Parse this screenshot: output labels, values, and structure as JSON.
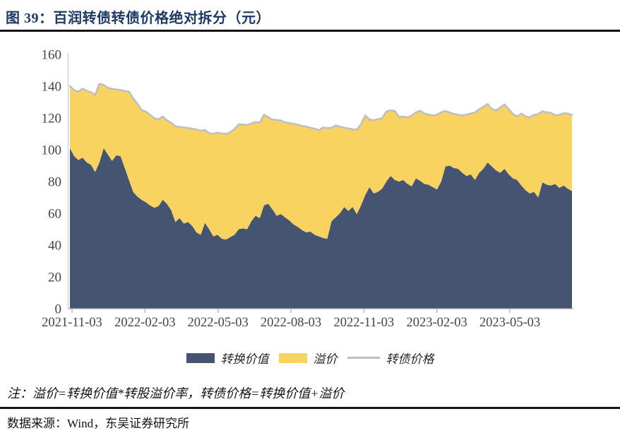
{
  "figure": {
    "label": "图 39：",
    "title": "百润转债转债价格绝对拆分（元）"
  },
  "note": "注：溢价=转换价值*转股溢价率，转债价格=转换价值+溢价",
  "source": "数据来源：Wind，东吴证券研究所",
  "legend": [
    {
      "label": "转换价值",
      "type": "fill",
      "color": "#455571"
    },
    {
      "label": "溢价",
      "type": "fill",
      "color": "#F9D35F"
    },
    {
      "label": "转债价格",
      "type": "line",
      "color": "#BFBFBF"
    }
  ],
  "colors": {
    "conversion_value_fill": "#455571",
    "premium_fill": "#F9D35F",
    "bond_price_line": "#BFBFBF",
    "title_text": "#1d3a66",
    "axis_text": "#454545",
    "axis_line": "#ABABAB",
    "y_axis_line": "#C9CBD3",
    "rule": "#141414"
  },
  "chart_data": {
    "type": "area",
    "stacked": true,
    "title": "百润转债转债价格绝对拆分（元）",
    "ylabel": "",
    "xlabel": "",
    "ylim": [
      0,
      160
    ],
    "yticks": [
      0,
      20,
      40,
      60,
      80,
      100,
      120,
      140,
      160
    ],
    "xticks": [
      "2021-11-03",
      "2022-02-03",
      "2022-05-03",
      "2022-08-03",
      "2022-11-03",
      "2023-02-03",
      "2023-05-03"
    ],
    "x_start": "2021-11-03",
    "x_end_approx": "2023-07",
    "grid": false,
    "legend_position": "bottom",
    "premium_definition": "溢价 = 转债价格 - 转换价值（图中黄色带厚度）",
    "series": [
      {
        "name": "转换价值",
        "role": "stacked-area-bottom",
        "color": "#455571",
        "values": [
          101,
          96,
          93.5,
          95,
          92,
          90.5,
          86,
          92,
          101,
          97,
          93,
          96.5,
          96,
          88.5,
          81,
          73.5,
          70.5,
          68.5,
          67,
          65,
          63.5,
          64.5,
          68.5,
          66,
          62,
          54.5,
          57,
          53.5,
          54.5,
          52,
          48,
          46.5,
          54,
          50,
          45.5,
          46.5,
          44,
          43.5,
          45,
          46.5,
          50,
          50.5,
          50,
          55,
          58.5,
          57,
          65,
          66,
          62.5,
          58.5,
          59.5,
          57.5,
          55.5,
          53,
          51.5,
          49.5,
          48,
          48.5,
          46.5,
          45.5,
          44.5,
          44,
          55,
          57.5,
          60,
          64,
          61.5,
          64,
          59.5,
          65,
          71.5,
          76.5,
          72.5,
          73.5,
          75.5,
          80,
          83.5,
          81,
          80,
          81,
          78.5,
          77,
          82,
          80.5,
          78.5,
          78,
          76.5,
          75,
          80,
          89.5,
          90,
          88.5,
          88,
          85.5,
          83.5,
          84.5,
          81,
          85.5,
          88,
          92,
          89.5,
          87,
          85.5,
          88,
          84.5,
          82,
          81,
          77.5,
          74.5,
          72.5,
          73.5,
          70,
          79.5,
          78,
          77.5,
          78.5,
          76,
          77.5,
          75.5,
          74
        ]
      },
      {
        "name": "溢价",
        "role": "stacked-area-top",
        "color": "#F9D35F",
        "derived": "转债价格 - 转换价值"
      },
      {
        "name": "转债价格",
        "role": "line",
        "color": "#BFBFBF",
        "values": [
          140,
          137.5,
          136.5,
          138.5,
          137,
          136.2,
          134.5,
          141.5,
          140.8,
          139,
          138.3,
          138,
          137.6,
          137,
          136.6,
          132.4,
          129,
          125,
          124,
          122,
          119.8,
          119.1,
          121,
          118.5,
          117,
          114.7,
          114.3,
          114,
          113.7,
          113.3,
          112.8,
          112,
          112.4,
          110.5,
          110,
          110.8,
          110.2,
          110,
          111,
          113,
          116,
          115.8,
          115.6,
          116.5,
          117.5,
          117,
          122,
          120.5,
          119,
          118.7,
          118.4,
          117.2,
          116.8,
          116.3,
          115.8,
          115,
          114.6,
          113.8,
          113.3,
          112.2,
          114,
          113.5,
          113.8,
          115.3,
          114.6,
          113.8,
          113.4,
          112.9,
          112.7,
          116,
          121.5,
          119,
          118.6,
          119.3,
          119.8,
          124,
          124.8,
          124.4,
          120.6,
          120.9,
          120.3,
          121.5,
          123.5,
          124.5,
          122.8,
          122.2,
          121.6,
          122,
          123.6,
          124.4,
          123.4,
          122.6,
          122,
          121.6,
          122.2,
          122.8,
          123.4,
          125.5,
          127,
          128.8,
          125.6,
          124.8,
          126.5,
          128.5,
          125.5,
          122.5,
          121,
          122.8,
          121,
          120.3,
          122,
          122.5,
          124.2,
          123.5,
          123.2,
          121.8,
          122,
          123,
          122.8,
          121.8
        ]
      }
    ]
  }
}
